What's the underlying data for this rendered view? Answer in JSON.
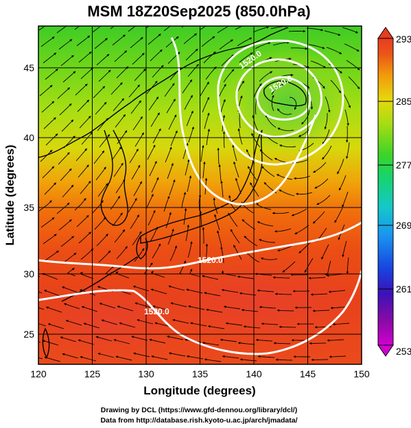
{
  "title": "MSM 18Z20Sep2025 (850.0hPa)",
  "xlabel": "Longitude (degrees)",
  "ylabel": "Latitude  (degrees)",
  "x_ticks": [
    "120",
    "125",
    "130",
    "135",
    "140",
    "145",
    "150"
  ],
  "y_ticks": [
    "25",
    "30",
    "35",
    "40",
    "45"
  ],
  "colorbar": {
    "ticks": [
      "293",
      "285",
      "277",
      "269",
      "261",
      "253"
    ],
    "min": 253,
    "max": 293
  },
  "contour_labels": [
    "1520.0",
    "1520.0",
    "1520.0",
    "1520.0"
  ],
  "credits": {
    "line1": "Drawing by DCL (https://www.gfd-dennou.org/library/dcl/)",
    "line2": "Data from http://database.rish.kyoto-u.ac.jp/arch/jmadata/"
  },
  "chart_data": {
    "type": "heatmap",
    "title": "MSM 18Z20Sep2025 (850.0hPa)",
    "xlabel": "Longitude (degrees)",
    "ylabel": "Latitude  (degrees)",
    "xlim": [
      120,
      150
    ],
    "ylim": [
      22.5,
      47.6
    ],
    "color_range": [
      253,
      293
    ],
    "overlays": [
      "streamlines",
      "geopotential-height contours",
      "coastlines",
      "grid"
    ],
    "grid": true
  }
}
